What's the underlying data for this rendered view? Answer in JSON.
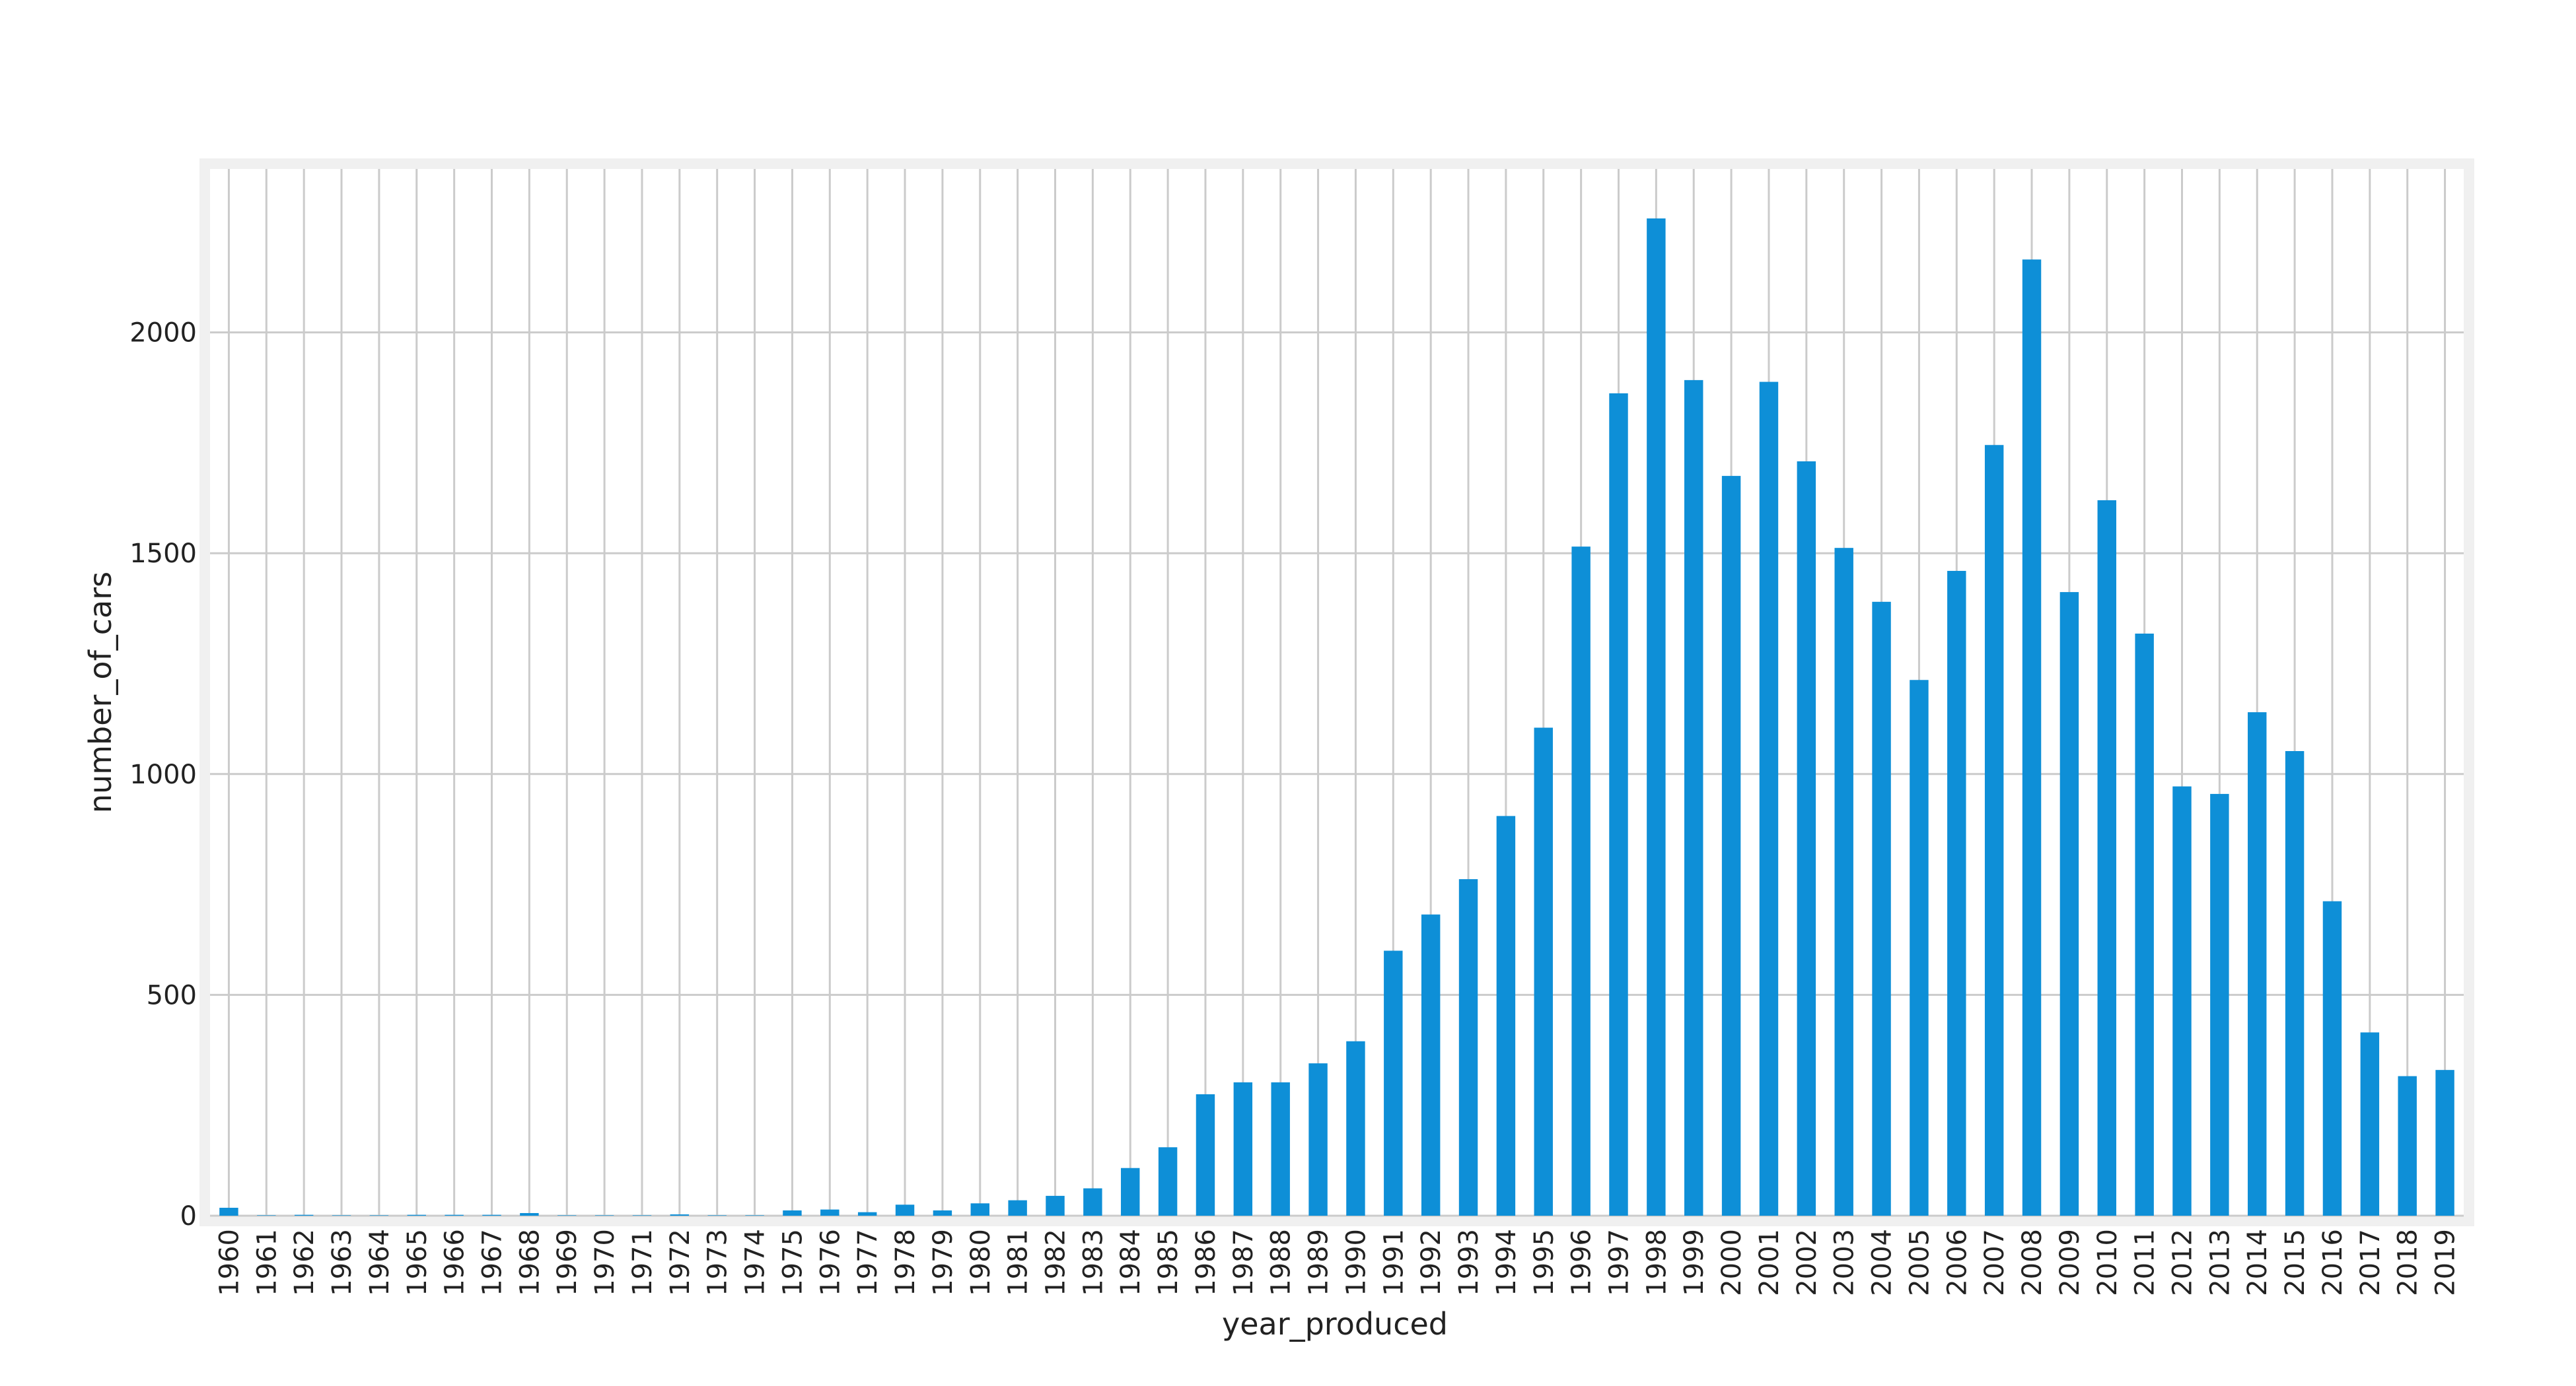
{
  "chart_data": {
    "type": "bar",
    "xlabel": "year_produced",
    "ylabel": "number_of_cars",
    "ylim": [
      0,
      2370
    ],
    "yticks": [
      0,
      500,
      1000,
      1500,
      2000
    ],
    "grid": true,
    "legend": "none",
    "categories": [
      "1960",
      "1961",
      "1962",
      "1963",
      "1964",
      "1965",
      "1966",
      "1967",
      "1968",
      "1969",
      "1970",
      "1971",
      "1972",
      "1973",
      "1974",
      "1975",
      "1976",
      "1977",
      "1978",
      "1979",
      "1980",
      "1981",
      "1982",
      "1983",
      "1984",
      "1985",
      "1986",
      "1987",
      "1988",
      "1989",
      "1990",
      "1991",
      "1992",
      "1993",
      "1994",
      "1995",
      "1996",
      "1997",
      "1998",
      "1999",
      "2000",
      "2001",
      "2002",
      "2003",
      "2004",
      "2005",
      "2006",
      "2007",
      "2008",
      "2009",
      "2010",
      "2011",
      "2012",
      "2013",
      "2014",
      "2015",
      "2016",
      "2017",
      "2018",
      "2019"
    ],
    "values": [
      18,
      1,
      2,
      1,
      1,
      2,
      2,
      2,
      6,
      1,
      1,
      1,
      3,
      1,
      1,
      12,
      14,
      8,
      25,
      12,
      28,
      35,
      45,
      62,
      108,
      155,
      275,
      302,
      302,
      345,
      395,
      600,
      682,
      762,
      905,
      1105,
      1515,
      1862,
      2258,
      1892,
      1675,
      1888,
      1708,
      1512,
      1390,
      1213,
      1460,
      1745,
      2165,
      1412,
      1620,
      1318,
      972,
      955,
      1140,
      1052,
      712,
      415,
      316,
      330
    ],
    "colors": {
      "bar": "#0e8fd7",
      "grid": "#cbcbcb",
      "frame": "#f0f0f0",
      "text": "#222222"
    }
  }
}
